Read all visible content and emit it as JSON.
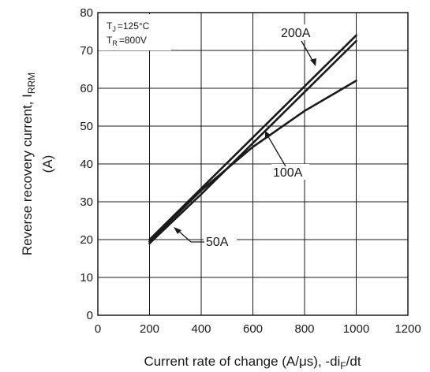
{
  "chart_data": {
    "type": "line",
    "xlabel": "Current rate of change (A/μs), -di",
    "xlabel_sub": "F",
    "xlabel_suffix": "/dt",
    "ylabel_main": "Reverse recovery current, I",
    "ylabel_sub": "RRM",
    "ylabel_unit": "(A)",
    "xlim": [
      0,
      1200
    ],
    "ylim": [
      0,
      80
    ],
    "x_ticks": [
      0,
      200,
      400,
      600,
      800,
      1000,
      1200
    ],
    "y_ticks": [
      0,
      10,
      20,
      30,
      40,
      50,
      60,
      70,
      80
    ],
    "grid": true,
    "conditions": [
      {
        "symbol": "T",
        "sub": "J",
        "value": "=125°C"
      },
      {
        "symbol": "T",
        "sub": "R",
        "value": "=800V"
      }
    ],
    "series": [
      {
        "name": "50A",
        "x": [
          200,
          400,
          600,
          800,
          1000
        ],
        "y": [
          19.5,
          33,
          44.5,
          54,
          62
        ]
      },
      {
        "name": "100A",
        "x": [
          200,
          400,
          600,
          800,
          1000
        ],
        "y": [
          19,
          32,
          45.5,
          59,
          72.5
        ]
      },
      {
        "name": "200A",
        "x": [
          200,
          400,
          600,
          800,
          1000
        ],
        "y": [
          20,
          33.5,
          47,
          60.5,
          74
        ]
      }
    ]
  }
}
